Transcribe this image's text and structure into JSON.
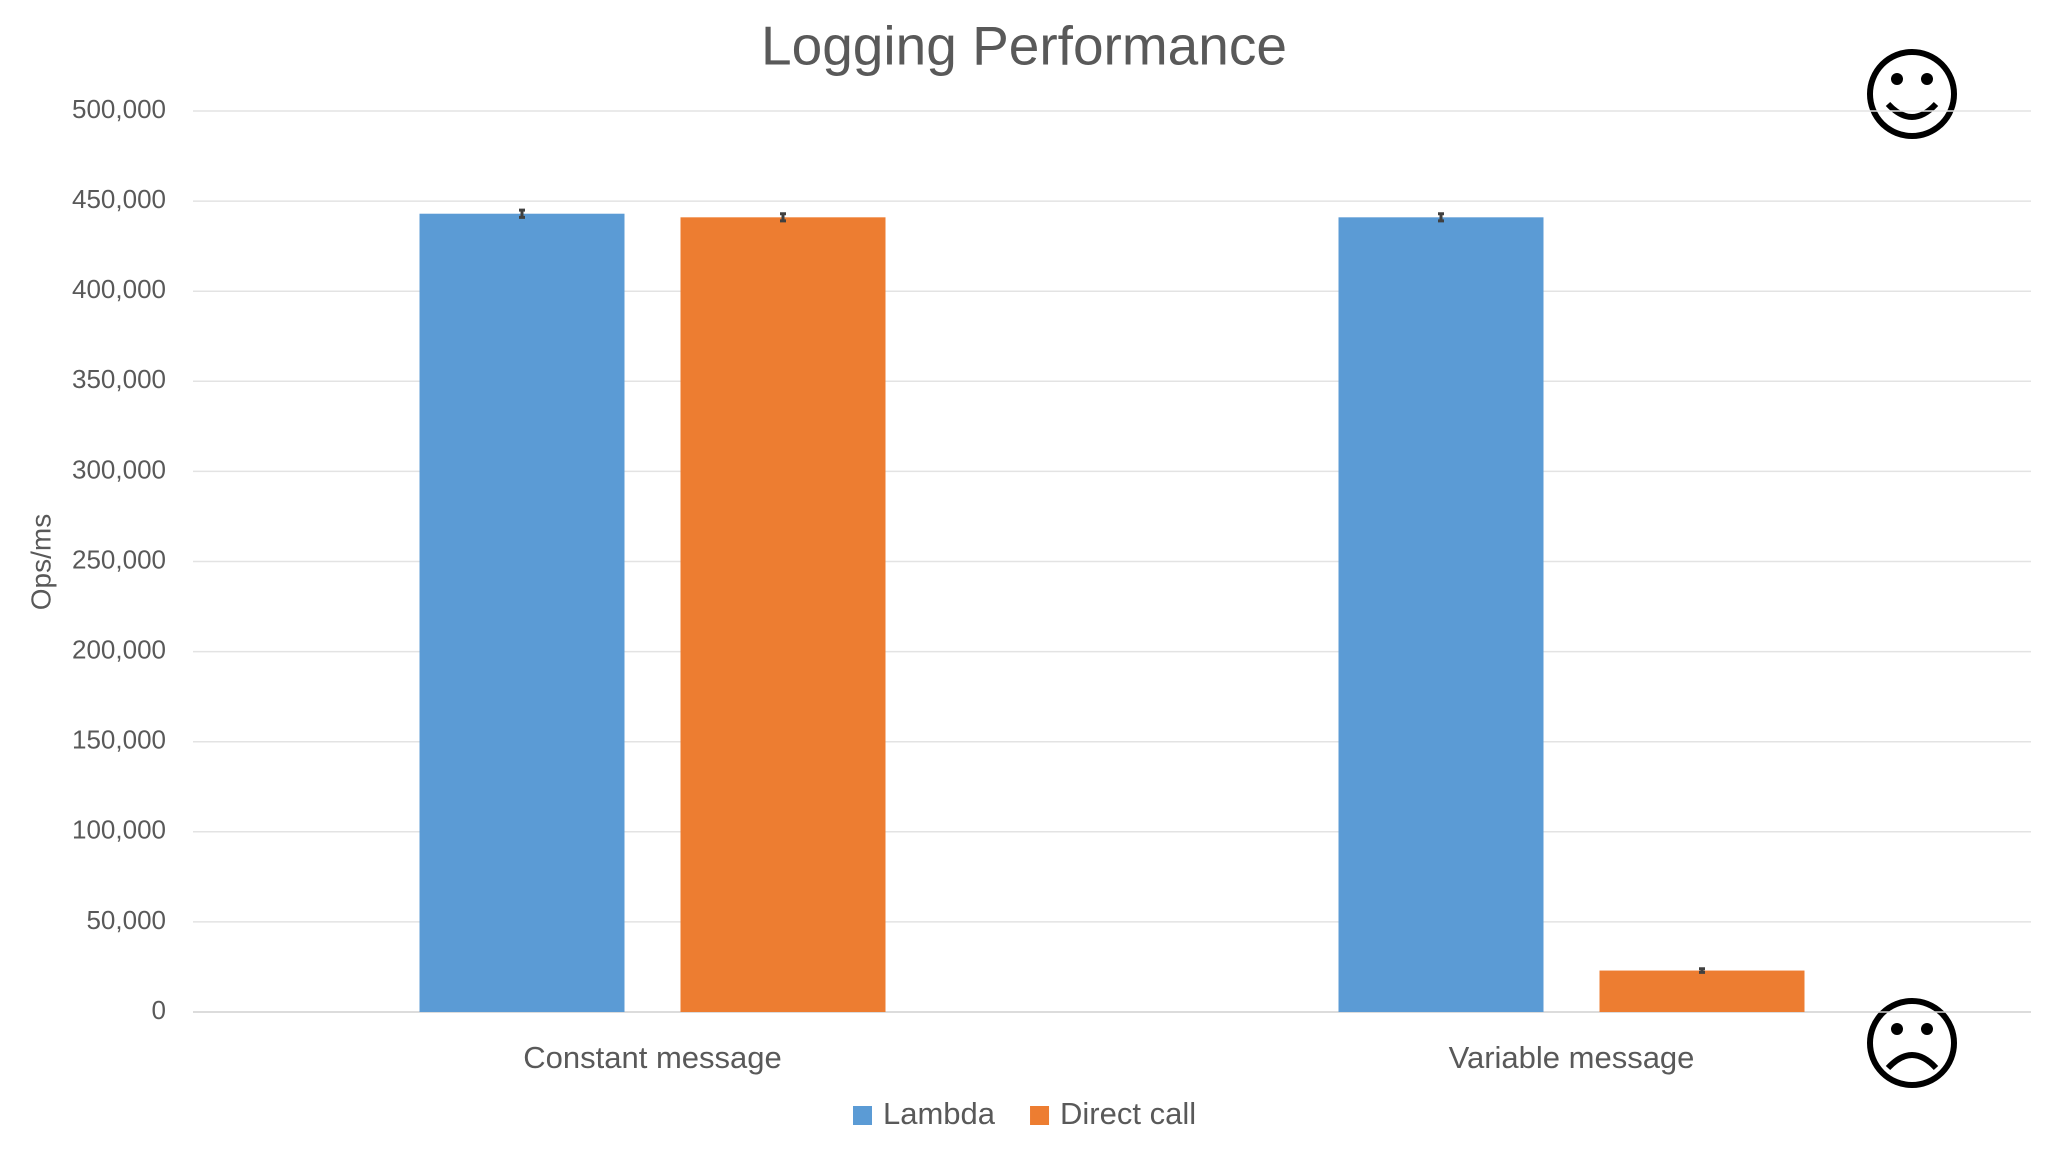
{
  "chart_data": {
    "type": "bar",
    "title": "Logging Performance",
    "y_label": "Ops/ms",
    "categories": [
      "Constant message",
      "Variable message"
    ],
    "series": [
      {
        "name": "Lambda",
        "color": "#5b9bd5",
        "values": [
          443000,
          441000
        ],
        "errors": [
          2000,
          2000
        ]
      },
      {
        "name": "Direct call",
        "color": "#ed7d31",
        "values": [
          441000,
          23000
        ],
        "errors": [
          2000,
          1000
        ]
      }
    ],
    "ylim": [
      0,
      500000
    ],
    "yticks": [
      0,
      {
        "value": 50000,
        "label": "50,000"
      },
      {
        "value": 100000,
        "label": "100,000"
      },
      {
        "value": 150000,
        "label": "150,000"
      },
      {
        "value": 200000,
        "label": "200,000"
      },
      {
        "value": 250000,
        "label": "250,000"
      },
      {
        "value": 300000,
        "label": "300,000"
      },
      {
        "value": 350000,
        "label": "350,000"
      },
      {
        "value": 400000,
        "label": "400,000"
      },
      {
        "value": 450000,
        "label": "450,000"
      },
      {
        "value": 500000,
        "label": "500,000"
      }
    ],
    "grid": true,
    "legend": "bottom"
  }
}
